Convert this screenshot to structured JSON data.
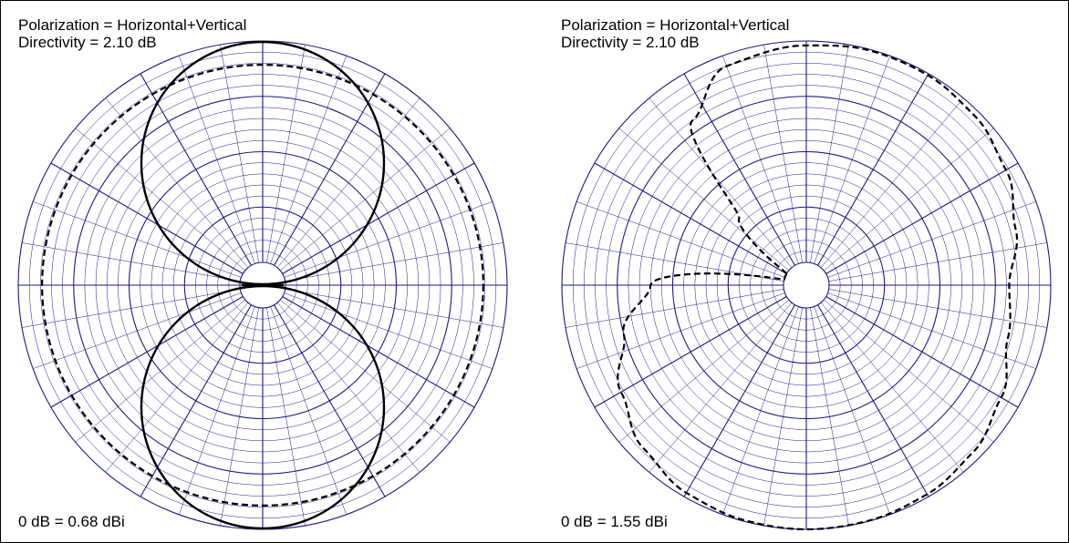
{
  "chart_data": [
    {
      "type": "polar",
      "header": {
        "polarization": "Polarization = Horizontal+Vertical",
        "directivity": "Directivity = 2.10 dB"
      },
      "footer": "0 dB = 0.68 dBi",
      "angular_grid_step_deg": 10,
      "major_spoke_step_deg": 30,
      "radial_range_db": [
        -40,
        0
      ],
      "major_rings_db": [
        -10,
        -20,
        -30
      ],
      "minor_ring_step_db": 2,
      "grid_color": "#1a1a8c",
      "series": [
        {
          "style": "solid",
          "pattern": "figure-eight",
          "lobe_directions_deg": [
            0,
            180
          ],
          "null_directions_deg": [
            90,
            270
          ],
          "peak_db": 0
        },
        {
          "style": "dashed",
          "pattern": "omnidirectional",
          "level_db": -4.3
        }
      ]
    },
    {
      "type": "polar",
      "header": {
        "polarization": "Polarization = Horizontal+Vertical",
        "directivity": "Directivity = 2.10 dB"
      },
      "footer": "0 dB = 1.55 dBi",
      "angular_grid_step_deg": 10,
      "major_spoke_step_deg": 30,
      "radial_range_db": [
        -40,
        0
      ],
      "major_rings_db": [
        -10,
        -20,
        -30
      ],
      "minor_ring_step_db": 2,
      "grid_color": "#1a1a8c",
      "series": [
        {
          "style": "dashed",
          "pattern": "asymmetric",
          "points": [
            {
              "angle_deg": -60,
              "db": -40
            },
            {
              "angle_deg": -45,
              "db": -27
            },
            {
              "angle_deg": -35,
              "db": -8
            },
            {
              "angle_deg": -20,
              "db": -2
            },
            {
              "angle_deg": 0,
              "db": -0.8
            },
            {
              "angle_deg": 15,
              "db": -0.2
            },
            {
              "angle_deg": 30,
              "db": -0.3
            },
            {
              "angle_deg": 45,
              "db": -1
            },
            {
              "angle_deg": 60,
              "db": -2.5
            },
            {
              "angle_deg": 75,
              "db": -5
            },
            {
              "angle_deg": 90,
              "db": -7.5
            },
            {
              "angle_deg": 105,
              "db": -6.5
            },
            {
              "angle_deg": 120,
              "db": -3.5
            },
            {
              "angle_deg": 135,
              "db": -1.5
            },
            {
              "angle_deg": 150,
              "db": -0.5
            },
            {
              "angle_deg": 165,
              "db": -0.1
            },
            {
              "angle_deg": 180,
              "db": 0
            },
            {
              "angle_deg": 195,
              "db": -0.2
            },
            {
              "angle_deg": 210,
              "db": -0.8
            },
            {
              "angle_deg": 225,
              "db": -2.5
            },
            {
              "angle_deg": 240,
              "db": -5.5
            },
            {
              "angle_deg": 255,
              "db": -10
            },
            {
              "angle_deg": 270,
              "db": -16
            },
            {
              "angle_deg": 285,
              "db": -40
            },
            {
              "angle_deg": 300,
              "db": -40
            }
          ]
        }
      ]
    }
  ]
}
